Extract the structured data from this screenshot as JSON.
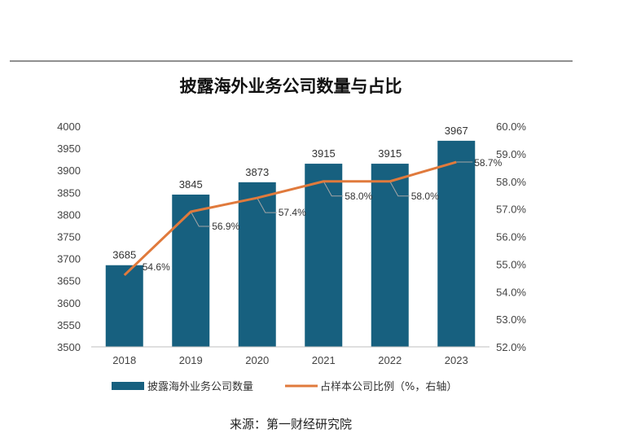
{
  "chart_data": {
    "type": "bar",
    "title": "披露海外业务公司数量与占比",
    "categories": [
      "2018",
      "2019",
      "2020",
      "2021",
      "2022",
      "2023"
    ],
    "series": [
      {
        "name": "披露海外业务公司数量",
        "type": "bar",
        "axis": "left",
        "color": "#17607f",
        "values": [
          3685,
          3845,
          3873,
          3915,
          3915,
          3967
        ],
        "labels": [
          "3685",
          "3845",
          "3873",
          "3915",
          "3915",
          "3967"
        ]
      },
      {
        "name": "占样本公司比例（%，右轴）",
        "type": "line",
        "axis": "right",
        "color": "#e07a3c",
        "values": [
          54.6,
          56.9,
          57.4,
          58.0,
          58.0,
          58.7
        ],
        "labels": [
          "54.6%",
          "56.9%",
          "57.4%",
          "58.0%",
          "58.0%",
          "58.7%"
        ]
      }
    ],
    "y_left": {
      "min": 3500,
      "max": 4000,
      "ticks": [
        "3500",
        "3550",
        "3600",
        "3650",
        "3700",
        "3750",
        "3800",
        "3850",
        "3900",
        "3950",
        "4000"
      ]
    },
    "y_right": {
      "min": 52,
      "max": 60,
      "ticks": [
        "52.0%",
        "53.0%",
        "54.0%",
        "55.0%",
        "56.0%",
        "57.0%",
        "58.0%",
        "59.0%",
        "60.0%"
      ]
    },
    "grid": false,
    "legend": "bottom"
  },
  "source": "来源：第一财经研究院"
}
